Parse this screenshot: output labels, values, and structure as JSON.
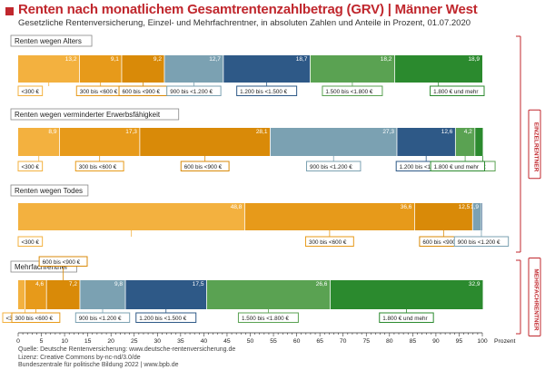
{
  "header": {
    "title": "Renten nach monatlichem Gesamtrentenzahlbetrag (GRV) | Männer West",
    "subtitle": "Gesetzliche Rentenversicherung, Einzel- und Mehrfachrentner, in absoluten Zahlen und Anteile in Prozent, 01.07.2020"
  },
  "footer": {
    "source": "Quelle: Deutsche Rentenversicherung: www.deutsche-rentenversicherung.de",
    "license": "Lizenz: Creative Commons by-nc-nd/3.0/de",
    "publisher": "Bundeszentrale für politische Bildung 2022 | www.bpb.de"
  },
  "groups": {
    "einzel": "EINZELRENTNER",
    "mehrfach": "MEHRFACHRENTNER"
  },
  "colors": {
    "brackets": [
      "#f3b13f",
      "#e79a1a",
      "#d98a08",
      "#7ba1b2",
      "#2e5987",
      "#5aa252",
      "#2b8a2e"
    ],
    "accent": "#c0272d"
  },
  "chart_data": {
    "type": "bar",
    "orientation": "horizontal",
    "stacked": true,
    "title": "Renten nach monatlichem Gesamtrentenzahlbetrag (GRV) | Männer West",
    "xlabel": "Prozent",
    "xlim": [
      0,
      100
    ],
    "xticks": [
      0,
      5,
      10,
      15,
      20,
      25,
      30,
      35,
      40,
      45,
      50,
      55,
      60,
      65,
      70,
      75,
      80,
      85,
      90,
      95,
      100
    ],
    "brackets": [
      "<300 €",
      "300 bis <600 €",
      "600 bis <900 €",
      "900 bis <1.200 €",
      "1.200 bis <1.500 €",
      "1.500 bis <1.800 €",
      "1.800 € und mehr"
    ],
    "series": [
      {
        "name": "Renten wegen Alters",
        "values": [
          13.2,
          9.1,
          9.2,
          12.7,
          18.7,
          18.2,
          18.9
        ]
      },
      {
        "name": "Renten wegen verminderter Erwerbsfähigkeit",
        "values": [
          8.9,
          17.3,
          28.1,
          27.3,
          12.6,
          4.2,
          1.7
        ]
      },
      {
        "name": "Renten wegen Todes",
        "values": [
          48.8,
          36.6,
          12.5,
          1.9,
          0.2,
          0.0,
          0.0
        ]
      },
      {
        "name": "Mehrfachrentner",
        "values": [
          1.5,
          4.6,
          7.2,
          9.8,
          17.5,
          26.6,
          32.9
        ]
      }
    ],
    "data_labels": [
      [
        "13,2",
        "9,1",
        "9,2",
        "12,7",
        "18,7",
        "18,2",
        "18,9"
      ],
      [
        "8,9",
        "17,3",
        "28,1",
        "27,3",
        "12,6",
        "4,2",
        ""
      ],
      [
        "48,8",
        "36,6",
        "12,5",
        "1,9",
        "",
        "",
        ""
      ],
      [
        "",
        "4,6",
        "7,2",
        "9,8",
        "17,5",
        "26,6",
        "32,9"
      ]
    ],
    "legend_visible": [
      [
        true,
        true,
        true,
        true,
        true,
        true,
        true
      ],
      [
        true,
        true,
        true,
        true,
        true,
        true,
        true
      ],
      [
        true,
        true,
        true,
        true,
        false,
        false,
        false
      ],
      [
        true,
        true,
        true,
        true,
        true,
        true,
        true
      ]
    ]
  }
}
